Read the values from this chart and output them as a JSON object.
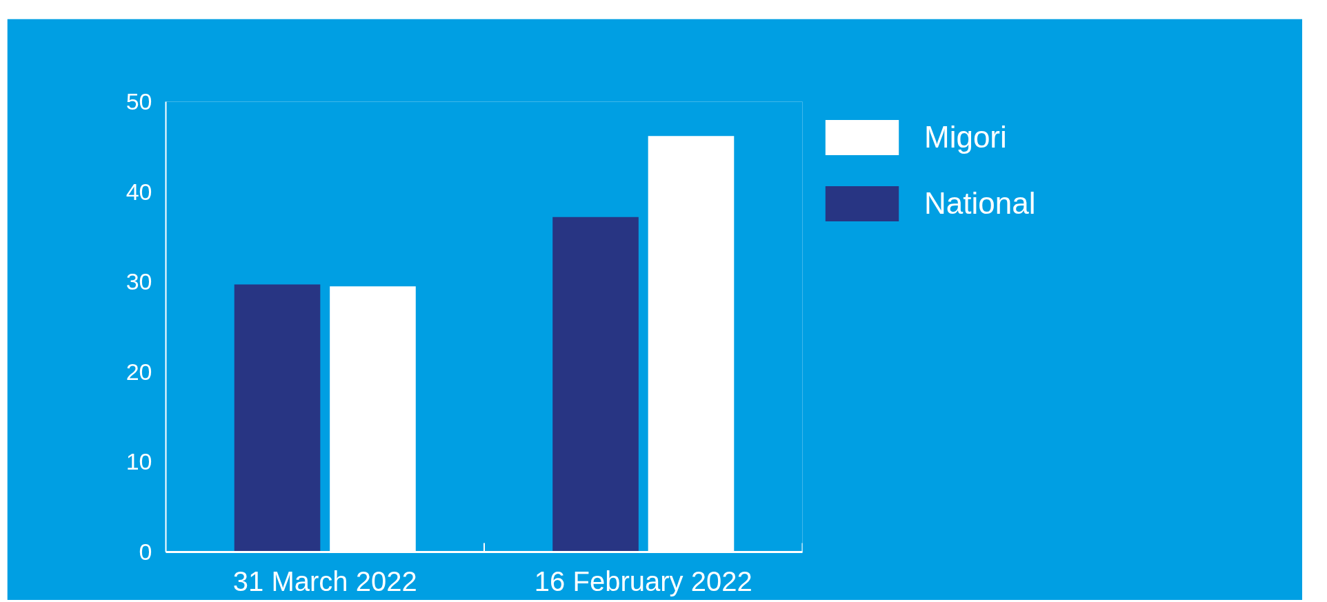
{
  "chart_data": {
    "type": "bar",
    "categories": [
      "31 March 2022",
      "16 February 2022"
    ],
    "series": [
      {
        "name": "National",
        "color": "#283583",
        "values": [
          29.7,
          37.2
        ]
      },
      {
        "name": "Migori",
        "color": "#ffffff",
        "values": [
          29.5,
          46.2
        ]
      }
    ],
    "ylim": [
      0,
      50
    ],
    "yticks": [
      0,
      10,
      20,
      30,
      40,
      50
    ],
    "grid": false,
    "legend": "top right"
  }
}
